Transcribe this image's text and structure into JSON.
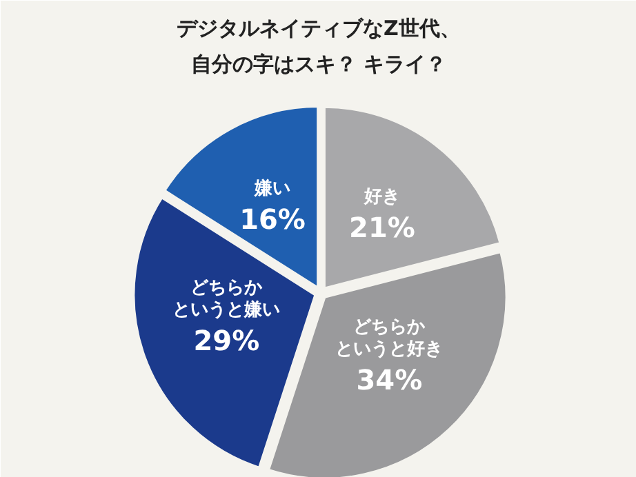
{
  "chart_data": {
    "type": "pie",
    "title": "デジタルネイティブなZ世代、自分の字はスキ？ キライ？",
    "categories": [
      "好き",
      "どちらかというと好き",
      "どちらかというと嫌い",
      "嫌い"
    ],
    "values": [
      21,
      34,
      29,
      16
    ],
    "colors": [
      "#a8a8aa",
      "#9a9a9c",
      "#1b3a8c",
      "#1f5fb0"
    ],
    "value_labels": [
      "21%",
      "34%",
      "29%",
      "16%"
    ]
  }
}
